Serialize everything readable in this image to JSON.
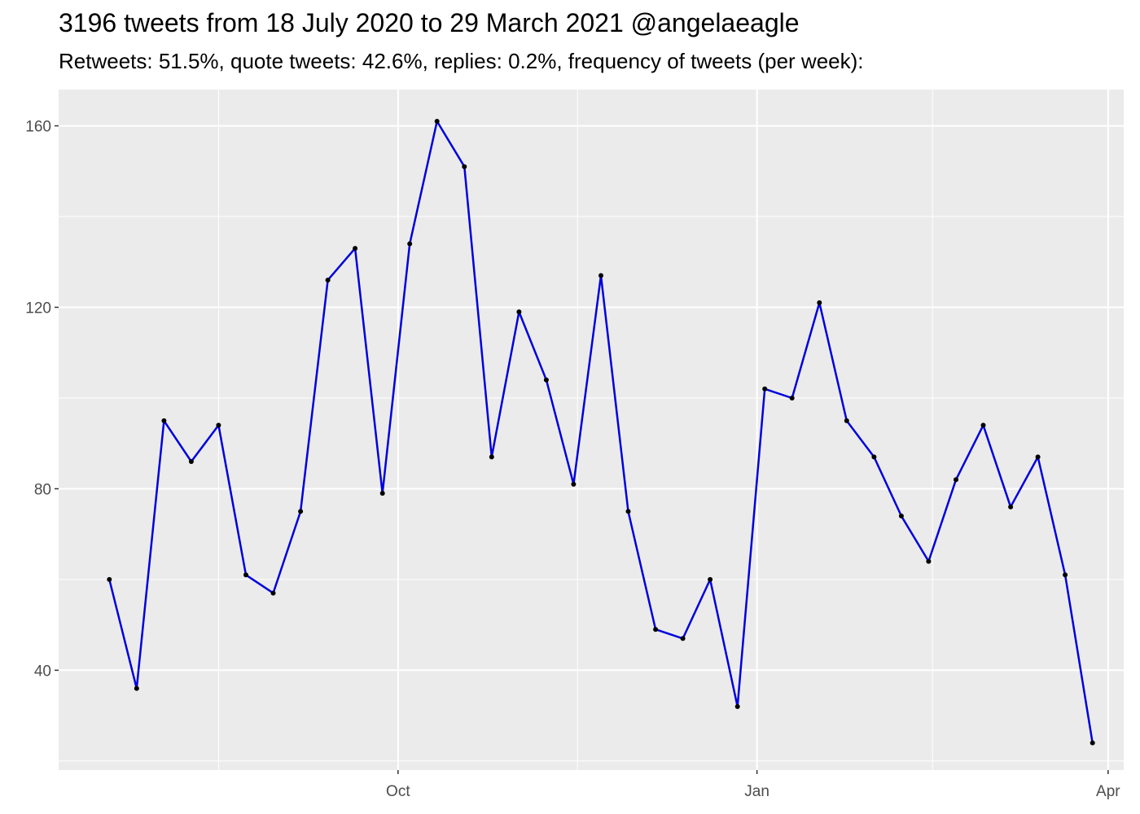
{
  "chart_data": {
    "type": "line",
    "title": "3196 tweets from 18 July 2020 to 29 March 2021 @angelaeagle",
    "subtitle": "Retweets: 51.5%, quote tweets: 42.6%, replies: 0.2%, frequency of tweets (per week):",
    "xlabel": "",
    "ylabel": "",
    "x_axis": {
      "type": "date",
      "range": [
        "2020-07-06",
        "2021-04-05"
      ],
      "ticks": [
        {
          "date": "2020-10-01",
          "label": "Oct"
        },
        {
          "date": "2021-01-01",
          "label": "Jan"
        },
        {
          "date": "2021-04-01",
          "label": "Apr"
        }
      ],
      "minor_ticks": [
        "2020-08-16",
        "2020-11-16",
        "2021-02-15"
      ]
    },
    "y_axis": {
      "range": [
        18,
        168
      ],
      "ticks": [
        40,
        80,
        120,
        160
      ],
      "minor_ticks": [
        20,
        60,
        100,
        140
      ]
    },
    "grid": true,
    "legend": "none",
    "series": [
      {
        "color": "#0000dd",
        "point_color": "#000000",
        "x": [
          "2020-07-19",
          "2020-07-26",
          "2020-08-02",
          "2020-08-09",
          "2020-08-16",
          "2020-08-23",
          "2020-08-30",
          "2020-09-06",
          "2020-09-13",
          "2020-09-20",
          "2020-09-27",
          "2020-10-04",
          "2020-10-11",
          "2020-10-18",
          "2020-10-25",
          "2020-11-01",
          "2020-11-08",
          "2020-11-15",
          "2020-11-22",
          "2020-11-29",
          "2020-12-06",
          "2020-12-13",
          "2020-12-20",
          "2020-12-27",
          "2021-01-03",
          "2021-01-10",
          "2021-01-17",
          "2021-01-24",
          "2021-01-31",
          "2021-02-07",
          "2021-02-14",
          "2021-02-21",
          "2021-02-28",
          "2021-03-07",
          "2021-03-14",
          "2021-03-21",
          "2021-03-28"
        ],
        "values": [
          60,
          36,
          95,
          86,
          94,
          61,
          57,
          75,
          126,
          133,
          79,
          134,
          161,
          151,
          87,
          119,
          104,
          81,
          127,
          75,
          49,
          47,
          60,
          32,
          102,
          100,
          121,
          95,
          87,
          74,
          64,
          82,
          94,
          76,
          87,
          61,
          24
        ]
      }
    ]
  }
}
